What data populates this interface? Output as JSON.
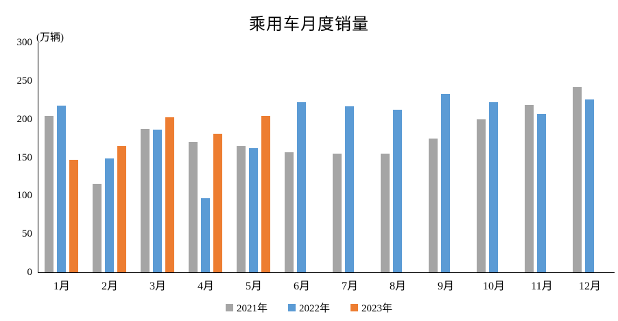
{
  "chart_data": {
    "type": "bar",
    "title": "乘用车月度销量",
    "ylabel": "(万辆)",
    "xlabel": "",
    "categories": [
      "1月",
      "2月",
      "3月",
      "4月",
      "5月",
      "6月",
      "7月",
      "8月",
      "9月",
      "10月",
      "11月",
      "12月"
    ],
    "series": [
      {
        "name": "2021年",
        "color": "#A5A5A5",
        "values": [
          204,
          116,
          187,
          170,
          165,
          157,
          155,
          155,
          175,
          200,
          219,
          242
        ]
      },
      {
        "name": "2022年",
        "color": "#5B9BD5",
        "values": [
          218,
          149,
          186,
          97,
          162,
          222,
          217,
          212,
          233,
          222,
          207,
          226
        ]
      },
      {
        "name": "2023年",
        "color": "#ED7D31",
        "values": [
          147,
          165,
          202,
          181,
          204,
          null,
          null,
          null,
          null,
          null,
          null,
          null
        ]
      }
    ],
    "ylim": [
      0,
      300
    ],
    "yticks": [
      0,
      50,
      100,
      150,
      200,
      250,
      300
    ],
    "grid": false,
    "legend_position": "bottom",
    "axis_color": "#000000",
    "background_color": "#FFFFFF"
  }
}
